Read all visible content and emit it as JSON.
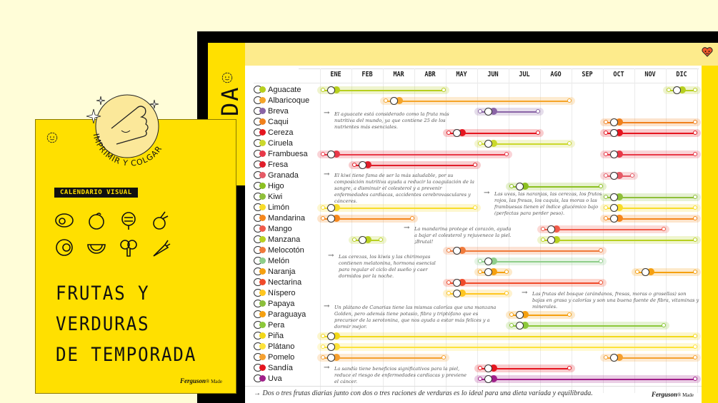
{
  "poster": {
    "badge": "IMPRIMIR Y COLGAR",
    "tag": "CALENDARIO VISUAL",
    "title_lines": [
      "FRUTAS Y",
      "VERDURAS",
      "DE TEMPORADA"
    ],
    "brand": "Ferguson",
    "brand_suffix": "® Made",
    "vegetable_icons": [
      "avocado-icon",
      "fig-icon",
      "artichoke-icon",
      "beet-icon",
      "apricot-icon",
      "watermelon-icon",
      "broccoli-icon",
      "carrot-icon"
    ]
  },
  "calendar": {
    "side_title": "DA",
    "months": [
      "ENE",
      "FEB",
      "MAR",
      "ABR",
      "MAY",
      "JUN",
      "JUL",
      "AGO",
      "SEP",
      "OCT",
      "NOV",
      "DIC"
    ],
    "fruits": [
      {
        "name": "Aguacate",
        "color": "#b7cf1e",
        "seasons": [
          [
            "ENE",
            "ABR"
          ],
          [
            "DIC",
            "DIC"
          ]
        ]
      },
      {
        "name": "Albaricoque",
        "color": "#f5a52a",
        "seasons": [
          [
            "MAR",
            "AGO"
          ]
        ]
      },
      {
        "name": "Breva",
        "color": "#8a64a6",
        "seasons": [
          [
            "JUN",
            "JUL"
          ]
        ]
      },
      {
        "name": "Caqui",
        "color": "#f0801c",
        "seasons": [
          [
            "OCT",
            "DIC"
          ]
        ]
      },
      {
        "name": "Cereza",
        "color": "#e5151f",
        "seasons": [
          [
            "MAY",
            "JUL"
          ],
          [
            "OCT",
            "DIC"
          ]
        ]
      },
      {
        "name": "Ciruela",
        "color": "#cbd82c",
        "seasons": [
          [
            "JUN",
            "AGO"
          ]
        ]
      },
      {
        "name": "Frambuesa",
        "color": "#e83848",
        "seasons": [
          [
            "ENE",
            "JUN"
          ],
          [
            "OCT",
            "DIC"
          ]
        ]
      },
      {
        "name": "Fresa",
        "color": "#e01e2a",
        "seasons": [
          [
            "FEB",
            "MAY"
          ]
        ]
      },
      {
        "name": "Granada",
        "color": "#e55a66",
        "seasons": [
          [
            "OCT",
            "OCT"
          ]
        ]
      },
      {
        "name": "Higo",
        "color": "#8cc020",
        "seasons": [
          [
            "JUL",
            "SEP"
          ]
        ]
      },
      {
        "name": "Kiwi",
        "color": "#8fbf3a",
        "seasons": [
          [
            "OCT",
            "DIC"
          ]
        ]
      },
      {
        "name": "Limón",
        "color": "#f8dc2a",
        "seasons": [
          [
            "ENE",
            "MAY"
          ],
          [
            "OCT",
            "DIC"
          ]
        ]
      },
      {
        "name": "Mandarina",
        "color": "#f5871c",
        "seasons": [
          [
            "ENE",
            "MAR"
          ],
          [
            "OCT",
            "DIC"
          ]
        ]
      },
      {
        "name": "Mango",
        "color": "#f05a4a",
        "seasons": [
          [
            "AGO",
            "NOV"
          ]
        ]
      },
      {
        "name": "Manzana",
        "color": "#b8d020",
        "seasons": [
          [
            "FEB",
            "FEB"
          ],
          [
            "AGO",
            "DIC"
          ]
        ]
      },
      {
        "name": "Melocotón",
        "color": "#f07a3a",
        "seasons": [
          [
            "MAY",
            "SEP"
          ]
        ]
      },
      {
        "name": "Melón",
        "color": "#8fce8a",
        "seasons": [
          [
            "JUN",
            "SEP"
          ]
        ]
      },
      {
        "name": "Naranja",
        "color": "#f5a010",
        "seasons": [
          [
            "JUN",
            "JUN"
          ],
          [
            "NOV",
            "DIC"
          ]
        ]
      },
      {
        "name": "Nectarina",
        "color": "#f04a2a",
        "seasons": [
          [
            "MAY",
            "SEP"
          ]
        ]
      },
      {
        "name": "Níspero",
        "color": "#ffc620",
        "seasons": [
          [
            "MAY",
            "JUN"
          ]
        ]
      },
      {
        "name": "Papaya",
        "color": "#8bbf3a",
        "seasons": []
      },
      {
        "name": "Paraguaya",
        "color": "#f5a010",
        "seasons": [
          [
            "JUL",
            "AGO"
          ]
        ]
      },
      {
        "name": "Pera",
        "color": "#8cc83a",
        "seasons": [
          [
            "JUL",
            "NOV"
          ]
        ]
      },
      {
        "name": "Piña",
        "color": "#f2d81a",
        "seasons": [
          [
            "ENE",
            "DIC"
          ]
        ]
      },
      {
        "name": "Plátano",
        "color": "#fde23a",
        "seasons": [
          [
            "ENE",
            "DIC"
          ]
        ]
      },
      {
        "name": "Pomelo",
        "color": "#f5a030",
        "seasons": [
          [
            "ENE",
            "ABR"
          ],
          [
            "OCT",
            "DIC"
          ]
        ]
      },
      {
        "name": "Sandía",
        "color": "#e5151f",
        "seasons": [
          [
            "JUN",
            "AGO"
          ]
        ]
      },
      {
        "name": "Uva",
        "color": "#a0208a",
        "seasons": [
          [
            "JUN",
            "DIC"
          ]
        ]
      }
    ],
    "notes": [
      "El aguacate está considerado como la fruta más nutritiva del mundo, ya que contiene 25 de los nutrientes más esenciales.",
      "El kiwi tiene fama de ser la más saludable, por su composición nutritiva ayuda a reducir la coagulación de la sangre, a disminuir el colesterol y a prevenir enfermedades cardiacas, accidentes cerebrovasculares y cánceres.",
      "Las uvas, las naranjas, las cerezas, los frutos rojos, las fresas, los caquis, las moras o las frambuesas tienen el índice glucémico bajo (perfectas para perder peso).",
      "La mandarina protege el corazón, ayuda a bajar el colesterol y rejuvenece la piel. ¡Brutal!",
      "Las cerezas, los kiwis y las chirimoyas contienen melatonina, hormona esencial para regular el ciclo del sueño y caer dormidos por la noche.",
      "Las frutas del bosque (arándanos, fresas, moras o grosellas) son bajas en grasa y calorías y son una buena fuente de fibra, vitaminas y minerales.",
      "Un plátano de Canarias tiene las mismas calorías que una manzana Golden, pero además tiene potasio, fibra y triptófano que es precursor de la serotonina, que nos ayuda a estar más felices y a dormir mejor.",
      "La sandía tiene beneficios significativos para la piel, reduce el riesgo de enfermedades cardiacas y previene el cáncer."
    ],
    "footer": "Dos o tres frutas diarias junto con dos o tres raciones de verduras es lo ideal para una dieta variada y equilibrada.",
    "brand": "Ferguson",
    "brand_suffix": "® Made"
  }
}
